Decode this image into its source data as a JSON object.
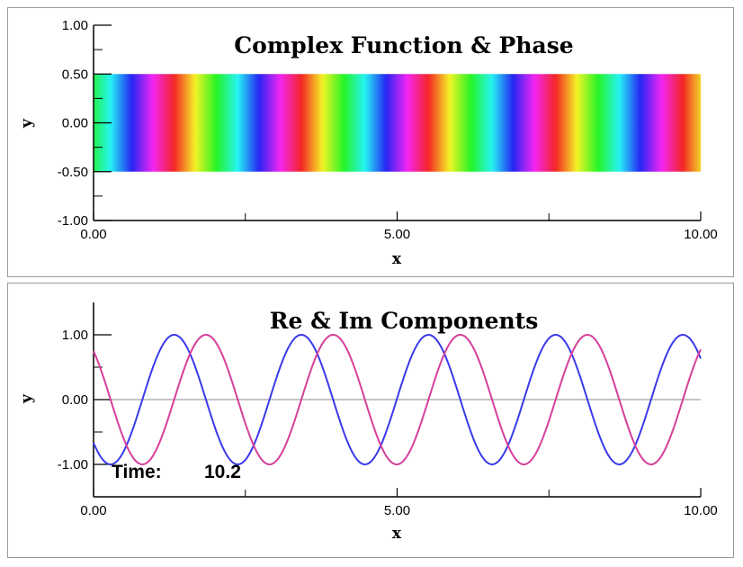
{
  "chart_data": [
    {
      "type": "heatmap",
      "title": "Complex Function & Phase",
      "xlabel": "x",
      "ylabel": "y",
      "xlim": [
        0,
        10
      ],
      "ylim": [
        -1,
        1
      ],
      "x_ticks": [
        "0.00",
        "5.00",
        "10.00"
      ],
      "y_ticks": [
        "1.00",
        "0.50",
        "0.00",
        "-0.50",
        "-1.00"
      ],
      "band": {
        "y_min": -0.5,
        "y_max": 0.5
      },
      "phase": {
        "wavenumber": 3,
        "offset_rad": 2.3
      }
    },
    {
      "type": "line",
      "title": "Re & Im Components",
      "xlabel": "x",
      "ylabel": "y",
      "xlim": [
        0,
        10
      ],
      "ylim": [
        -1.5,
        1.5
      ],
      "x_ticks": [
        "0.00",
        "5.00",
        "10.00"
      ],
      "y_ticks": [
        "1.00",
        "0.00",
        "-1.00"
      ],
      "zero_line": true,
      "series": [
        {
          "color": "#3a3ae8",
          "function": "cos",
          "wavenumber": 3,
          "offset_rad": 2.3
        },
        {
          "color": "#d63f9a",
          "function": "sin",
          "wavenumber": 3,
          "offset_rad": 2.3
        }
      ],
      "annotation": {
        "label": "Time:",
        "value": "10.2"
      }
    }
  ]
}
